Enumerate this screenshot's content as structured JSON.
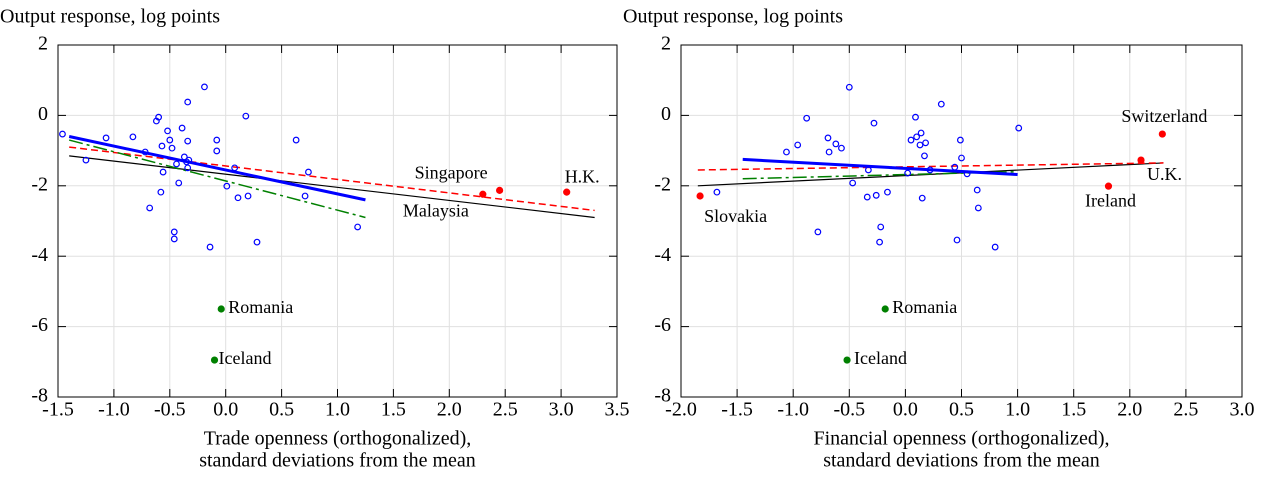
{
  "chart_data": [
    {
      "type": "scatter",
      "ylabel": "Output response, log points",
      "xlabel": [
        "Trade openness (orthogonalized),",
        "standard deviations from the mean"
      ],
      "xlim": [
        -1.5,
        3.5
      ],
      "xticks": [
        -1.5,
        {
          "value": -1,
          "label": "-1.0"
        },
        -0.5,
        {
          "value": 0,
          "label": "0.0"
        },
        0.5,
        {
          "value": 1,
          "label": "1.0"
        },
        1.5,
        {
          "value": 2,
          "label": "2.0"
        },
        2.5,
        {
          "value": 3,
          "label": "3.0"
        },
        3.5
      ],
      "ylim": [
        -8,
        2
      ],
      "yticks": [
        -8,
        -6,
        -4,
        -2,
        0,
        2
      ],
      "grid": true,
      "series": [
        {
          "color": "#0000ff",
          "marker": "hollow",
          "x": [
            -1.46,
            -1.25,
            -1.07,
            -0.83,
            -0.72,
            -0.68,
            -0.62,
            -0.6,
            -0.58,
            -0.57,
            -0.56,
            -0.52,
            -0.5,
            -0.48,
            -0.46,
            -0.46,
            -0.44,
            -0.42,
            -0.39,
            -0.37,
            -0.35,
            -0.34,
            -0.34,
            -0.34,
            -0.33,
            -0.19,
            -0.14,
            -0.08,
            -0.08,
            0.01,
            0.08,
            0.11,
            0.18,
            0.2,
            0.28,
            0.63,
            0.71,
            0.74,
            1.18
          ],
          "values": [
            -0.53,
            -1.27,
            -0.64,
            -0.61,
            -1.04,
            -2.63,
            -0.16,
            -0.05,
            -2.18,
            -0.87,
            -1.61,
            -0.44,
            -0.7,
            -0.93,
            -3.31,
            -3.51,
            -1.38,
            -1.92,
            -0.36,
            -1.18,
            -1.32,
            -1.49,
            0.38,
            -0.73,
            -1.27,
            0.81,
            -3.74,
            -0.7,
            -1.01,
            -2.01,
            -1.49,
            -2.34,
            -0.02,
            -2.29,
            -3.6,
            -0.7,
            -2.29,
            -1.61,
            -3.17
          ]
        },
        {
          "color": "#ff0000",
          "marker": "filled",
          "x": [
            2.45,
            2.3,
            3.05
          ],
          "values": [
            -2.13,
            -2.24,
            -2.18
          ],
          "labels": [
            "Singapore",
            "Malaysia",
            "H.K."
          ]
        },
        {
          "color": "#008000",
          "marker": "filled",
          "x": [
            -0.04,
            -0.1
          ],
          "values": [
            -5.5,
            -6.95
          ],
          "labels": [
            "Romania",
            "Iceland"
          ]
        }
      ],
      "fit_lines": [
        {
          "color": "#000000",
          "width": 1.2,
          "dash": "none",
          "x": [
            -1.4,
            3.3
          ],
          "values": [
            -1.15,
            -2.9
          ]
        },
        {
          "color": "#ff0000",
          "width": 1.5,
          "dash": "7 4",
          "x": [
            -1.4,
            3.3
          ],
          "values": [
            -0.9,
            -2.7
          ]
        },
        {
          "color": "#008000",
          "width": 1.5,
          "dash": "14 4 3 4",
          "x": [
            -1.4,
            1.25
          ],
          "values": [
            -0.7,
            -2.9
          ]
        },
        {
          "color": "#0000ff",
          "width": 3,
          "dash": "none",
          "x": [
            -1.4,
            1.25
          ],
          "values": [
            -0.6,
            -2.4
          ]
        }
      ]
    },
    {
      "type": "scatter",
      "ylabel": "Output response, log points",
      "xlabel": [
        "Financial openness (orthogonalized),",
        "standard deviations from the mean"
      ],
      "xlim": [
        -2,
        3
      ],
      "xticks": [
        {
          "value": -2,
          "label": "-2.0"
        },
        -1.5,
        {
          "value": -1,
          "label": "-1.0"
        },
        -0.5,
        {
          "value": 0,
          "label": "0.0"
        },
        0.5,
        {
          "value": 1,
          "label": "1.0"
        },
        1.5,
        {
          "value": 2,
          "label": "2.0"
        },
        2.5,
        {
          "value": 3,
          "label": "3.0"
        }
      ],
      "ylim": [
        -8,
        2
      ],
      "yticks": [
        -8,
        -6,
        -4,
        -2,
        0,
        2
      ],
      "grid": true,
      "series": [
        {
          "color": "#0000ff",
          "marker": "hollow",
          "x": [
            -1.68,
            -1.06,
            -0.96,
            -0.88,
            -0.78,
            -0.69,
            -0.68,
            -0.62,
            -0.57,
            -0.5,
            -0.47,
            -0.34,
            -0.33,
            -0.28,
            -0.26,
            -0.23,
            -0.22,
            -0.16,
            0.02,
            0.05,
            0.09,
            0.1,
            0.13,
            0.14,
            0.15,
            0.17,
            0.18,
            0.22,
            0.32,
            0.44,
            0.46,
            0.49,
            0.5,
            0.55,
            0.64,
            0.65,
            0.8,
            1.01
          ],
          "values": [
            -2.18,
            -1.04,
            -0.84,
            -0.08,
            -3.31,
            -0.64,
            -1.04,
            -0.81,
            -0.93,
            0.8,
            -1.92,
            -2.32,
            -1.55,
            -0.22,
            -2.27,
            -3.6,
            -3.17,
            -2.18,
            -1.64,
            -0.7,
            -0.05,
            -0.61,
            -0.84,
            -0.5,
            -2.35,
            -1.15,
            -0.78,
            -1.55,
            0.32,
            -1.47,
            -3.54,
            -0.7,
            -1.21,
            -1.66,
            -2.12,
            -2.63,
            -3.74,
            -0.36
          ]
        },
        {
          "color": "#ff0000",
          "marker": "filled",
          "x": [
            -1.83,
            2.29,
            2.1,
            1.81
          ],
          "values": [
            -2.29,
            -0.53,
            -1.27,
            -2.01
          ],
          "labels": [
            "Slovakia",
            "Switzerland",
            "U.K.",
            "Ireland"
          ]
        },
        {
          "color": "#008000",
          "marker": "filled",
          "x": [
            -0.18,
            -0.52
          ],
          "values": [
            -5.5,
            -6.95
          ],
          "labels": [
            "Romania",
            "Iceland"
          ]
        }
      ],
      "fit_lines": [
        {
          "color": "#000000",
          "width": 1.2,
          "dash": "none",
          "x": [
            -1.85,
            2.3
          ],
          "values": [
            -2.0,
            -1.35
          ]
        },
        {
          "color": "#ff0000",
          "width": 1.5,
          "dash": "7 4",
          "x": [
            -1.85,
            2.3
          ],
          "values": [
            -1.55,
            -1.35
          ]
        },
        {
          "color": "#008000",
          "width": 1.5,
          "dash": "14 4 3 4",
          "x": [
            -1.45,
            1.0
          ],
          "values": [
            -1.8,
            -1.6
          ]
        },
        {
          "color": "#0000ff",
          "width": 3,
          "dash": "none",
          "x": [
            -1.45,
            1.0
          ],
          "values": [
            -1.25,
            -1.68
          ]
        }
      ]
    }
  ]
}
